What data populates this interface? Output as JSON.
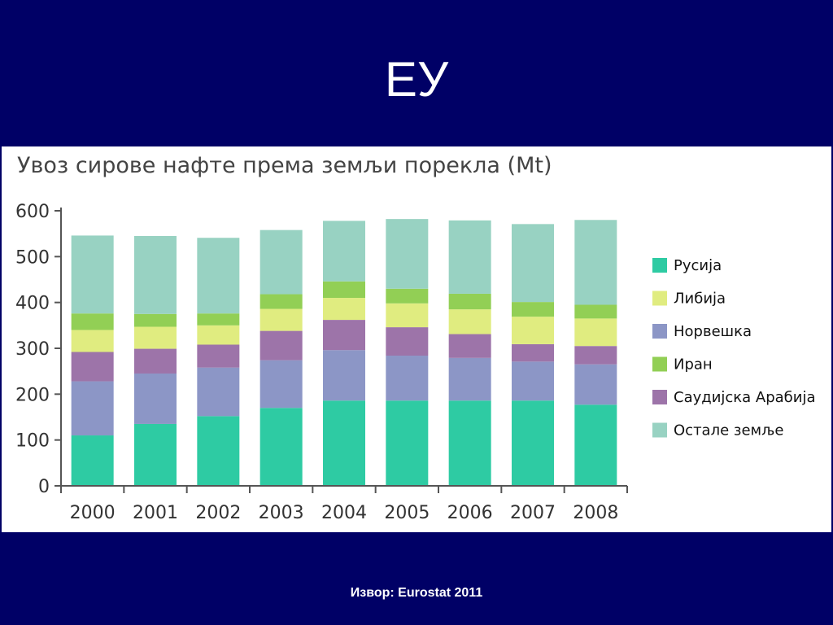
{
  "slide": {
    "title": "ЕУ",
    "source": "Извор: Eurostat 2011"
  },
  "chart_data": {
    "type": "bar",
    "stacked": true,
    "title": "Увоз сирове нафте према земљи порекла (Mt)",
    "xlabel": "",
    "ylabel": "",
    "ylim": [
      0,
      600
    ],
    "yticks": [
      0,
      100,
      200,
      300,
      400,
      500,
      600
    ],
    "grid": false,
    "legend_position": "right",
    "categories": [
      "2000",
      "2001",
      "2002",
      "2003",
      "2004",
      "2005",
      "2006",
      "2007",
      "2008"
    ],
    "series": [
      {
        "name": "Русија",
        "color": "#2ecba3",
        "values": [
          110,
          135,
          152,
          170,
          186,
          186,
          186,
          186,
          177
        ]
      },
      {
        "name": "Норвешка",
        "color": "#8c96c6",
        "values": [
          118,
          110,
          106,
          104,
          110,
          98,
          93,
          85,
          88
        ]
      },
      {
        "name": "Саудијска Арабија",
        "color": "#9d74a9",
        "values": [
          64,
          54,
          50,
          64,
          66,
          62,
          52,
          38,
          40
        ]
      },
      {
        "name": "Либија",
        "color": "#e0ec80",
        "values": [
          48,
          48,
          42,
          48,
          48,
          52,
          54,
          60,
          60
        ]
      },
      {
        "name": "Иран",
        "color": "#92cf55",
        "values": [
          36,
          28,
          26,
          32,
          36,
          32,
          34,
          32,
          30
        ]
      },
      {
        "name": "Остале земље",
        "color": "#98d2c2",
        "values": [
          170,
          170,
          165,
          140,
          132,
          152,
          160,
          170,
          185
        ]
      }
    ],
    "legend_order": [
      "Русија",
      "Либија",
      "Норвешка",
      "Иран",
      "Саудијска Арабија",
      "Остале земље"
    ]
  }
}
